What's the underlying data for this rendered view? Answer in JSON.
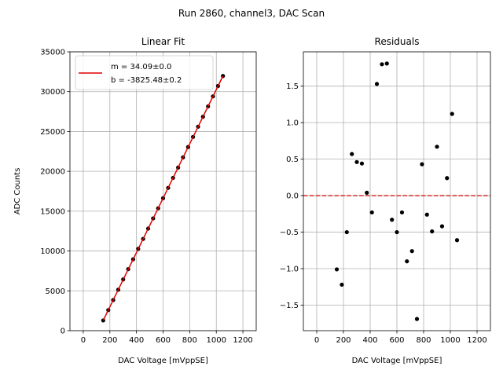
{
  "figure": {
    "suptitle": "Run 2860, channel3, DAC Scan"
  },
  "colors": {
    "fit_line": "#e00000",
    "points": "#000000",
    "zero_line": "#d62728",
    "grid": "#b0b0b0"
  },
  "chart_data": [
    {
      "type": "scatter",
      "title": "Linear Fit",
      "xlabel": "DAC Voltage [mVppSE]",
      "ylabel": "ADC Counts",
      "xlim": [
        -100,
        1300
      ],
      "ylim": [
        0,
        35000
      ],
      "xticks": [
        0,
        200,
        400,
        600,
        800,
        1000,
        1200
      ],
      "yticks": [
        0,
        5000,
        10000,
        15000,
        20000,
        25000,
        30000,
        35000
      ],
      "grid": true,
      "legend": {
        "placement": "top-left",
        "entries": [
          "m = 34.09±0.0",
          "b = -3825.48±0.2"
        ]
      },
      "series": [
        {
          "kind": "points",
          "x": [
            150,
            188,
            225,
            263,
            300,
            338,
            375,
            413,
            450,
            488,
            525,
            563,
            600,
            638,
            675,
            713,
            750,
            788,
            825,
            863,
            900,
            938,
            975,
            1013,
            1050
          ],
          "y": [
            1288,
            2584,
            3844,
            5141,
            6431,
            7726,
            8963,
            10275,
            11518,
            12814,
            14090,
            15363,
            16628,
            17925,
            19184,
            20471,
            21753,
            23046,
            24319,
            25603,
            26856,
            28153,
            29412,
            30710,
            31968
          ]
        },
        {
          "kind": "fit-line",
          "x": [
            150,
            1050
          ],
          "y": [
            1288,
            31970
          ]
        }
      ]
    },
    {
      "type": "scatter",
      "title": "Residuals",
      "xlabel": "DAC Voltage [mVppSE]",
      "ylabel": "",
      "xlim": [
        -100,
        1300
      ],
      "ylim": [
        -1.85,
        1.97
      ],
      "xticks": [
        0,
        200,
        400,
        600,
        800,
        1000,
        1200
      ],
      "yticks": [
        -1.5,
        -1.0,
        -0.5,
        0.0,
        0.5,
        1.0,
        1.5
      ],
      "ytick_labels": [
        "−1.5",
        "−1.0",
        "−0.5",
        "0.0",
        "0.5",
        "1.0",
        "1.5"
      ],
      "grid": true,
      "zero_line": 0.0,
      "series": [
        {
          "kind": "points",
          "x": [
            150,
            188,
            225,
            263,
            300,
            338,
            375,
            413,
            450,
            488,
            525,
            563,
            600,
            638,
            675,
            713,
            750,
            788,
            825,
            863,
            900,
            938,
            975,
            1013,
            1050
          ],
          "y": [
            -1.01,
            -1.22,
            -0.5,
            0.57,
            0.46,
            0.44,
            0.04,
            -0.23,
            1.53,
            1.8,
            1.81,
            -0.33,
            -0.5,
            -0.23,
            -0.9,
            -0.76,
            -1.69,
            0.43,
            -0.26,
            -0.49,
            0.67,
            -0.42,
            0.24,
            1.12,
            -0.61
          ]
        }
      ]
    }
  ]
}
